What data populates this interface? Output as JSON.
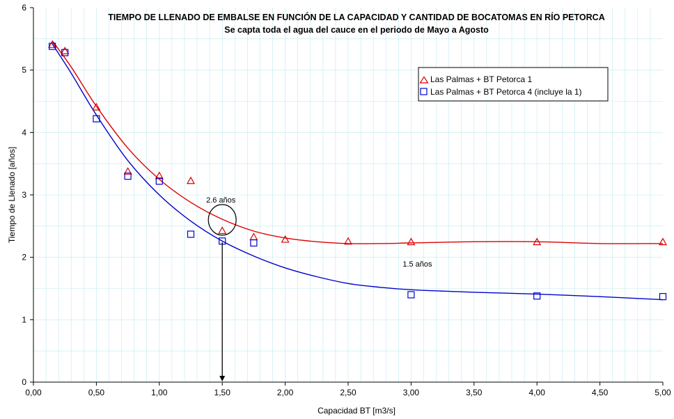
{
  "chart_data": {
    "type": "scatter",
    "title": "TIEMPO DE LLENADO DE EMBALSE EN FUNCIÓN DE LA CAPACIDAD Y CANTIDAD DE BOCATOMAS EN RÍO PETORCA",
    "subtitle": "Se capta toda el agua del cauce en el periodo de Mayo a Agosto",
    "xlabel": "Capacidad BT [m3/s]",
    "ylabel": "Tiempo de Llenado [años]",
    "xlim": [
      0,
      5
    ],
    "ylim": [
      0,
      6
    ],
    "xticks": [
      0,
      0.5,
      1,
      1.5,
      2,
      2.5,
      3,
      3.5,
      4,
      4.5,
      5
    ],
    "xtick_labels": [
      "0,00",
      "0,50",
      "1,00",
      "1,50",
      "2,00",
      "2,50",
      "3,00",
      "3,50",
      "4,00",
      "4,50",
      "5,00"
    ],
    "yticks": [
      0,
      1,
      2,
      3,
      4,
      5,
      6
    ],
    "ytick_labels": [
      "0",
      "1",
      "2",
      "3",
      "4",
      "5",
      "6"
    ],
    "grid": true,
    "legend_position": "upper-right",
    "series": [
      {
        "name": "Las Palmas + BT Petorca 1",
        "marker": "triangle",
        "color": "#dd0000",
        "x": [
          0.15,
          0.25,
          0.5,
          0.75,
          1.0,
          1.25,
          1.5,
          1.75,
          2.0,
          2.5,
          3.0,
          4.0,
          5.0
        ],
        "y": [
          5.4,
          5.3,
          4.4,
          3.37,
          3.3,
          3.22,
          2.42,
          2.32,
          2.28,
          2.25,
          2.24,
          2.24,
          2.24
        ],
        "trend_x": [
          0.15,
          0.3,
          0.5,
          0.75,
          1.0,
          1.25,
          1.5,
          1.75,
          2.0,
          2.25,
          2.5,
          2.75,
          3.0,
          3.5,
          4.0,
          4.5,
          5.0
        ],
        "trend_y": [
          5.47,
          5.05,
          4.42,
          3.75,
          3.25,
          2.88,
          2.61,
          2.42,
          2.31,
          2.25,
          2.22,
          2.22,
          2.23,
          2.25,
          2.25,
          2.22,
          2.22
        ]
      },
      {
        "name": "Las Palmas + BT Petorca 4 (incluye la 1)",
        "marker": "square",
        "color": "#0000cc",
        "x": [
          0.15,
          0.25,
          0.5,
          0.75,
          1.0,
          1.25,
          1.5,
          1.75,
          3.0,
          4.0,
          5.0
        ],
        "y": [
          5.38,
          5.28,
          4.22,
          3.3,
          3.22,
          2.37,
          2.26,
          2.23,
          1.4,
          1.38,
          1.37
        ],
        "trend_x": [
          0.15,
          0.3,
          0.5,
          0.75,
          1.0,
          1.25,
          1.5,
          1.75,
          2.0,
          2.25,
          2.5,
          2.75,
          3.0,
          3.5,
          4.0,
          4.5,
          5.0
        ],
        "trend_y": [
          5.42,
          4.95,
          4.28,
          3.55,
          3.0,
          2.58,
          2.26,
          2.02,
          1.83,
          1.69,
          1.58,
          1.52,
          1.48,
          1.44,
          1.41,
          1.37,
          1.32
        ]
      }
    ],
    "annotations": [
      {
        "text": "2.6 años",
        "x": 1.5,
        "y": 2.6,
        "type": "circle"
      },
      {
        "text": "1.5 años",
        "x": 3.05,
        "y": 1.85,
        "type": "label"
      }
    ],
    "arrow": {
      "x": 1.5,
      "y_from": 2.24,
      "y_to": 0
    }
  }
}
